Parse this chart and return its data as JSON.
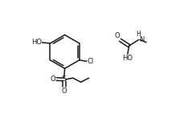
{
  "bg_color": "#ffffff",
  "line_color": "#1a1a1a",
  "line_width": 1.1,
  "font_size": 6.0,
  "fig_width": 2.34,
  "fig_height": 1.47,
  "dpi": 100,
  "xlim": [
    0.0,
    1.0
  ],
  "ylim": [
    0.15,
    0.95
  ]
}
